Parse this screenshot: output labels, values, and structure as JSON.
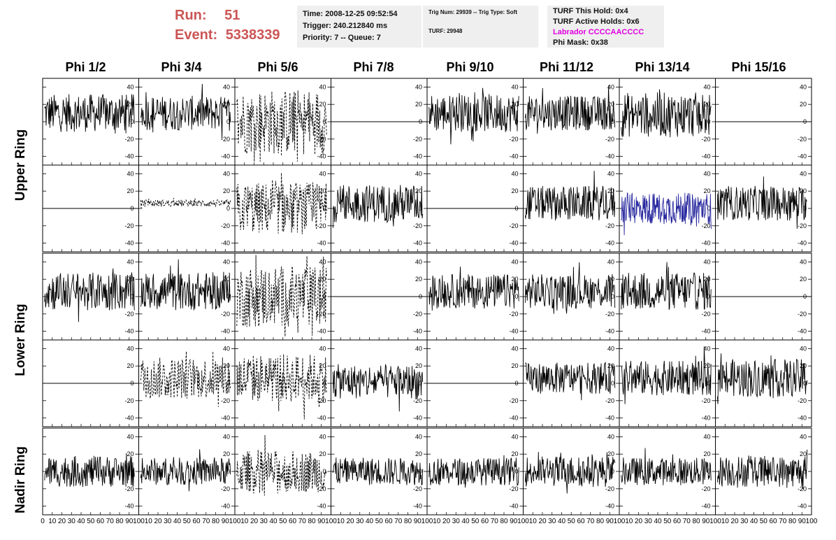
{
  "header": {
    "run_label": "Run:",
    "run_value": "51",
    "event_label": "Event:",
    "event_value": "5338339"
  },
  "info_time": {
    "time": "Time: 2008-12-25 09:52:54",
    "trigger": "Trigger: 240.212840 ms",
    "priority": "Priority: 7 -- Queue: 7"
  },
  "info_trig": {
    "trig": "Trig Num: 29939 -- Trig Type: Soft",
    "turf": "TURF: 29948"
  },
  "info_turf": {
    "this_hold": "TURF This Hold: 0x4",
    "active_holds": "TURF Active Holds: 0x6",
    "labrador": "Labrador CCCCAACCCC",
    "phi_mask": "Phi Mask: 0x38"
  },
  "colors": {
    "run_text": "#cc5555",
    "labrador_text": "#e000e0",
    "info_bg": "#efefef",
    "highlight_trace": "#2a2aa0",
    "trace": "#000000"
  },
  "chart_data": {
    "type": "line",
    "columns": [
      "Phi 1/2",
      "Phi 3/4",
      "Phi 5/6",
      "Phi 7/8",
      "Phi 9/10",
      "Phi 11/12",
      "Phi 13/14",
      "Phi 15/16"
    ],
    "rows": [
      "Upper Ring",
      "Upper Ring",
      "Lower Ring",
      "Lower Ring",
      "Nadir Ring"
    ],
    "row_labels": [
      "Upper Ring",
      "Lower Ring",
      "Nadir Ring"
    ],
    "xlim": [
      0,
      100
    ],
    "ylim": [
      -50,
      50
    ],
    "y_ticks": [
      -40,
      -20,
      0,
      20,
      40
    ],
    "x_ticks": [
      0,
      10,
      20,
      30,
      40,
      50,
      60,
      70,
      80,
      90,
      100
    ],
    "panel_style": [
      [
        "solid",
        "solid",
        "dashed",
        "flat",
        "solid",
        "solid",
        "solid",
        "flat"
      ],
      [
        "flat",
        "dashed-small",
        "dashed",
        "solid",
        "flat",
        "solid",
        "blue",
        "solid"
      ],
      [
        "solid",
        "solid",
        "dashed",
        "flat",
        "solid",
        "solid",
        "solid",
        "flat"
      ],
      [
        "flat",
        "dashed",
        "dashed",
        "solid",
        "flat",
        "solid",
        "solid",
        "solid"
      ],
      [
        "solid",
        "solid",
        "dashed",
        "solid",
        "solid",
        "solid",
        "solid",
        "solid"
      ]
    ],
    "panel_amplitude": [
      [
        22,
        20,
        38,
        0,
        22,
        20,
        26,
        0
      ],
      [
        0,
        4,
        30,
        22,
        0,
        20,
        18,
        20
      ],
      [
        22,
        22,
        36,
        0,
        20,
        20,
        22,
        0
      ],
      [
        0,
        24,
        28,
        20,
        0,
        18,
        20,
        22
      ],
      [
        18,
        16,
        24,
        16,
        16,
        18,
        16,
        18
      ]
    ],
    "panel_offset": [
      [
        10,
        10,
        0,
        0,
        10,
        10,
        8,
        0
      ],
      [
        0,
        6,
        0,
        6,
        0,
        6,
        0,
        6
      ],
      [
        6,
        6,
        0,
        0,
        6,
        6,
        6,
        0
      ],
      [
        0,
        6,
        6,
        2,
        0,
        6,
        6,
        6
      ],
      [
        0,
        0,
        0,
        0,
        0,
        0,
        0,
        0
      ]
    ],
    "grid": false
  }
}
